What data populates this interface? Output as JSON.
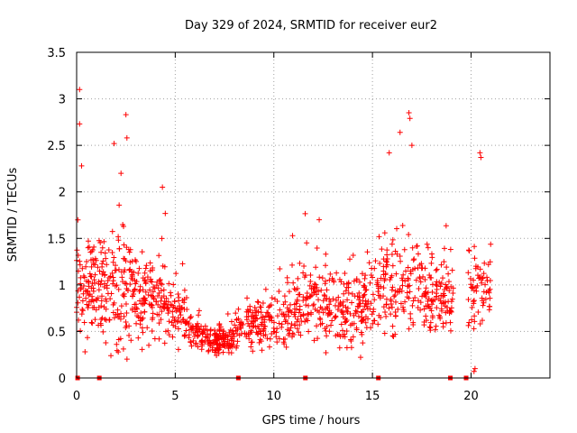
{
  "chart_data": {
    "type": "scatter",
    "title": "Day 329 of 2024, SRMTID for receiver eur2",
    "xlabel": "GPS time / hours",
    "ylabel": "SRMTID / TECUs",
    "xlim": [
      0,
      24
    ],
    "ylim": [
      0,
      3.5
    ],
    "x_ticks": [
      0,
      5,
      10,
      15,
      20
    ],
    "x_tick_labels": [
      "0",
      "5",
      "10",
      "15",
      "20"
    ],
    "y_ticks": [
      0,
      0.5,
      1,
      1.5,
      2,
      2.5,
      3,
      3.5
    ],
    "y_tick_labels": [
      "0",
      "0.5",
      "1",
      "1.5",
      "2",
      "2.5",
      "3",
      "3.5"
    ],
    "grid": true,
    "marker": "plus",
    "series_color": "#ff0000",
    "zero_markers_x": [
      0.05,
      1.15,
      8.2,
      11.6,
      15.3,
      18.95,
      19.75
    ],
    "peak_points": [
      {
        "x": 0.15,
        "y": 3.1
      },
      {
        "x": 0.15,
        "y": 2.73
      },
      {
        "x": 0.25,
        "y": 2.28
      },
      {
        "x": 2.5,
        "y": 2.83
      },
      {
        "x": 1.9,
        "y": 2.52
      },
      {
        "x": 2.55,
        "y": 2.58
      },
      {
        "x": 2.25,
        "y": 2.2
      },
      {
        "x": 4.35,
        "y": 2.05
      },
      {
        "x": 12.3,
        "y": 1.7
      },
      {
        "x": 10.95,
        "y": 1.53
      },
      {
        "x": 16.4,
        "y": 2.64
      },
      {
        "x": 16.85,
        "y": 2.85
      },
      {
        "x": 16.9,
        "y": 2.79
      },
      {
        "x": 17.0,
        "y": 2.5
      },
      {
        "x": 15.85,
        "y": 2.42
      },
      {
        "x": 20.45,
        "y": 2.42
      },
      {
        "x": 20.5,
        "y": 2.37
      },
      {
        "x": 20.2,
        "y": 0.1
      },
      {
        "x": 20.15,
        "y": 0.07
      }
    ],
    "envelope": [
      {
        "t": 0.0,
        "base": 1.0,
        "spread": 0.7
      },
      {
        "t": 0.8,
        "base": 0.95,
        "spread": 0.6
      },
      {
        "t": 1.5,
        "base": 0.9,
        "spread": 0.7
      },
      {
        "t": 2.5,
        "base": 1.05,
        "spread": 0.8
      },
      {
        "t": 3.5,
        "base": 0.8,
        "spread": 0.5
      },
      {
        "t": 4.5,
        "base": 0.85,
        "spread": 0.55
      },
      {
        "t": 5.5,
        "base": 0.6,
        "spread": 0.3
      },
      {
        "t": 6.5,
        "base": 0.42,
        "spread": 0.15
      },
      {
        "t": 7.5,
        "base": 0.38,
        "spread": 0.15
      },
      {
        "t": 8.5,
        "base": 0.55,
        "spread": 0.25
      },
      {
        "t": 9.5,
        "base": 0.6,
        "spread": 0.3
      },
      {
        "t": 10.5,
        "base": 0.65,
        "spread": 0.35
      },
      {
        "t": 11.5,
        "base": 0.75,
        "spread": 0.45
      },
      {
        "t": 12.5,
        "base": 0.8,
        "spread": 0.5
      },
      {
        "t": 13.5,
        "base": 0.7,
        "spread": 0.45
      },
      {
        "t": 14.5,
        "base": 0.75,
        "spread": 0.45
      },
      {
        "t": 15.5,
        "base": 0.95,
        "spread": 0.6
      },
      {
        "t": 16.5,
        "base": 1.0,
        "spread": 0.7
      },
      {
        "t": 17.5,
        "base": 0.9,
        "spread": 0.55
      },
      {
        "t": 18.5,
        "base": 0.85,
        "spread": 0.45
      },
      {
        "t": 19.0,
        "base": 0.8,
        "spread": 0.35
      },
      {
        "t": 20.0,
        "base": 0.9,
        "spread": 0.6
      },
      {
        "t": 21.0,
        "base": 1.0,
        "spread": 0.5
      }
    ],
    "data_gap_hours": [
      19.1,
      19.85
    ],
    "data_end_hour": 21.0
  }
}
